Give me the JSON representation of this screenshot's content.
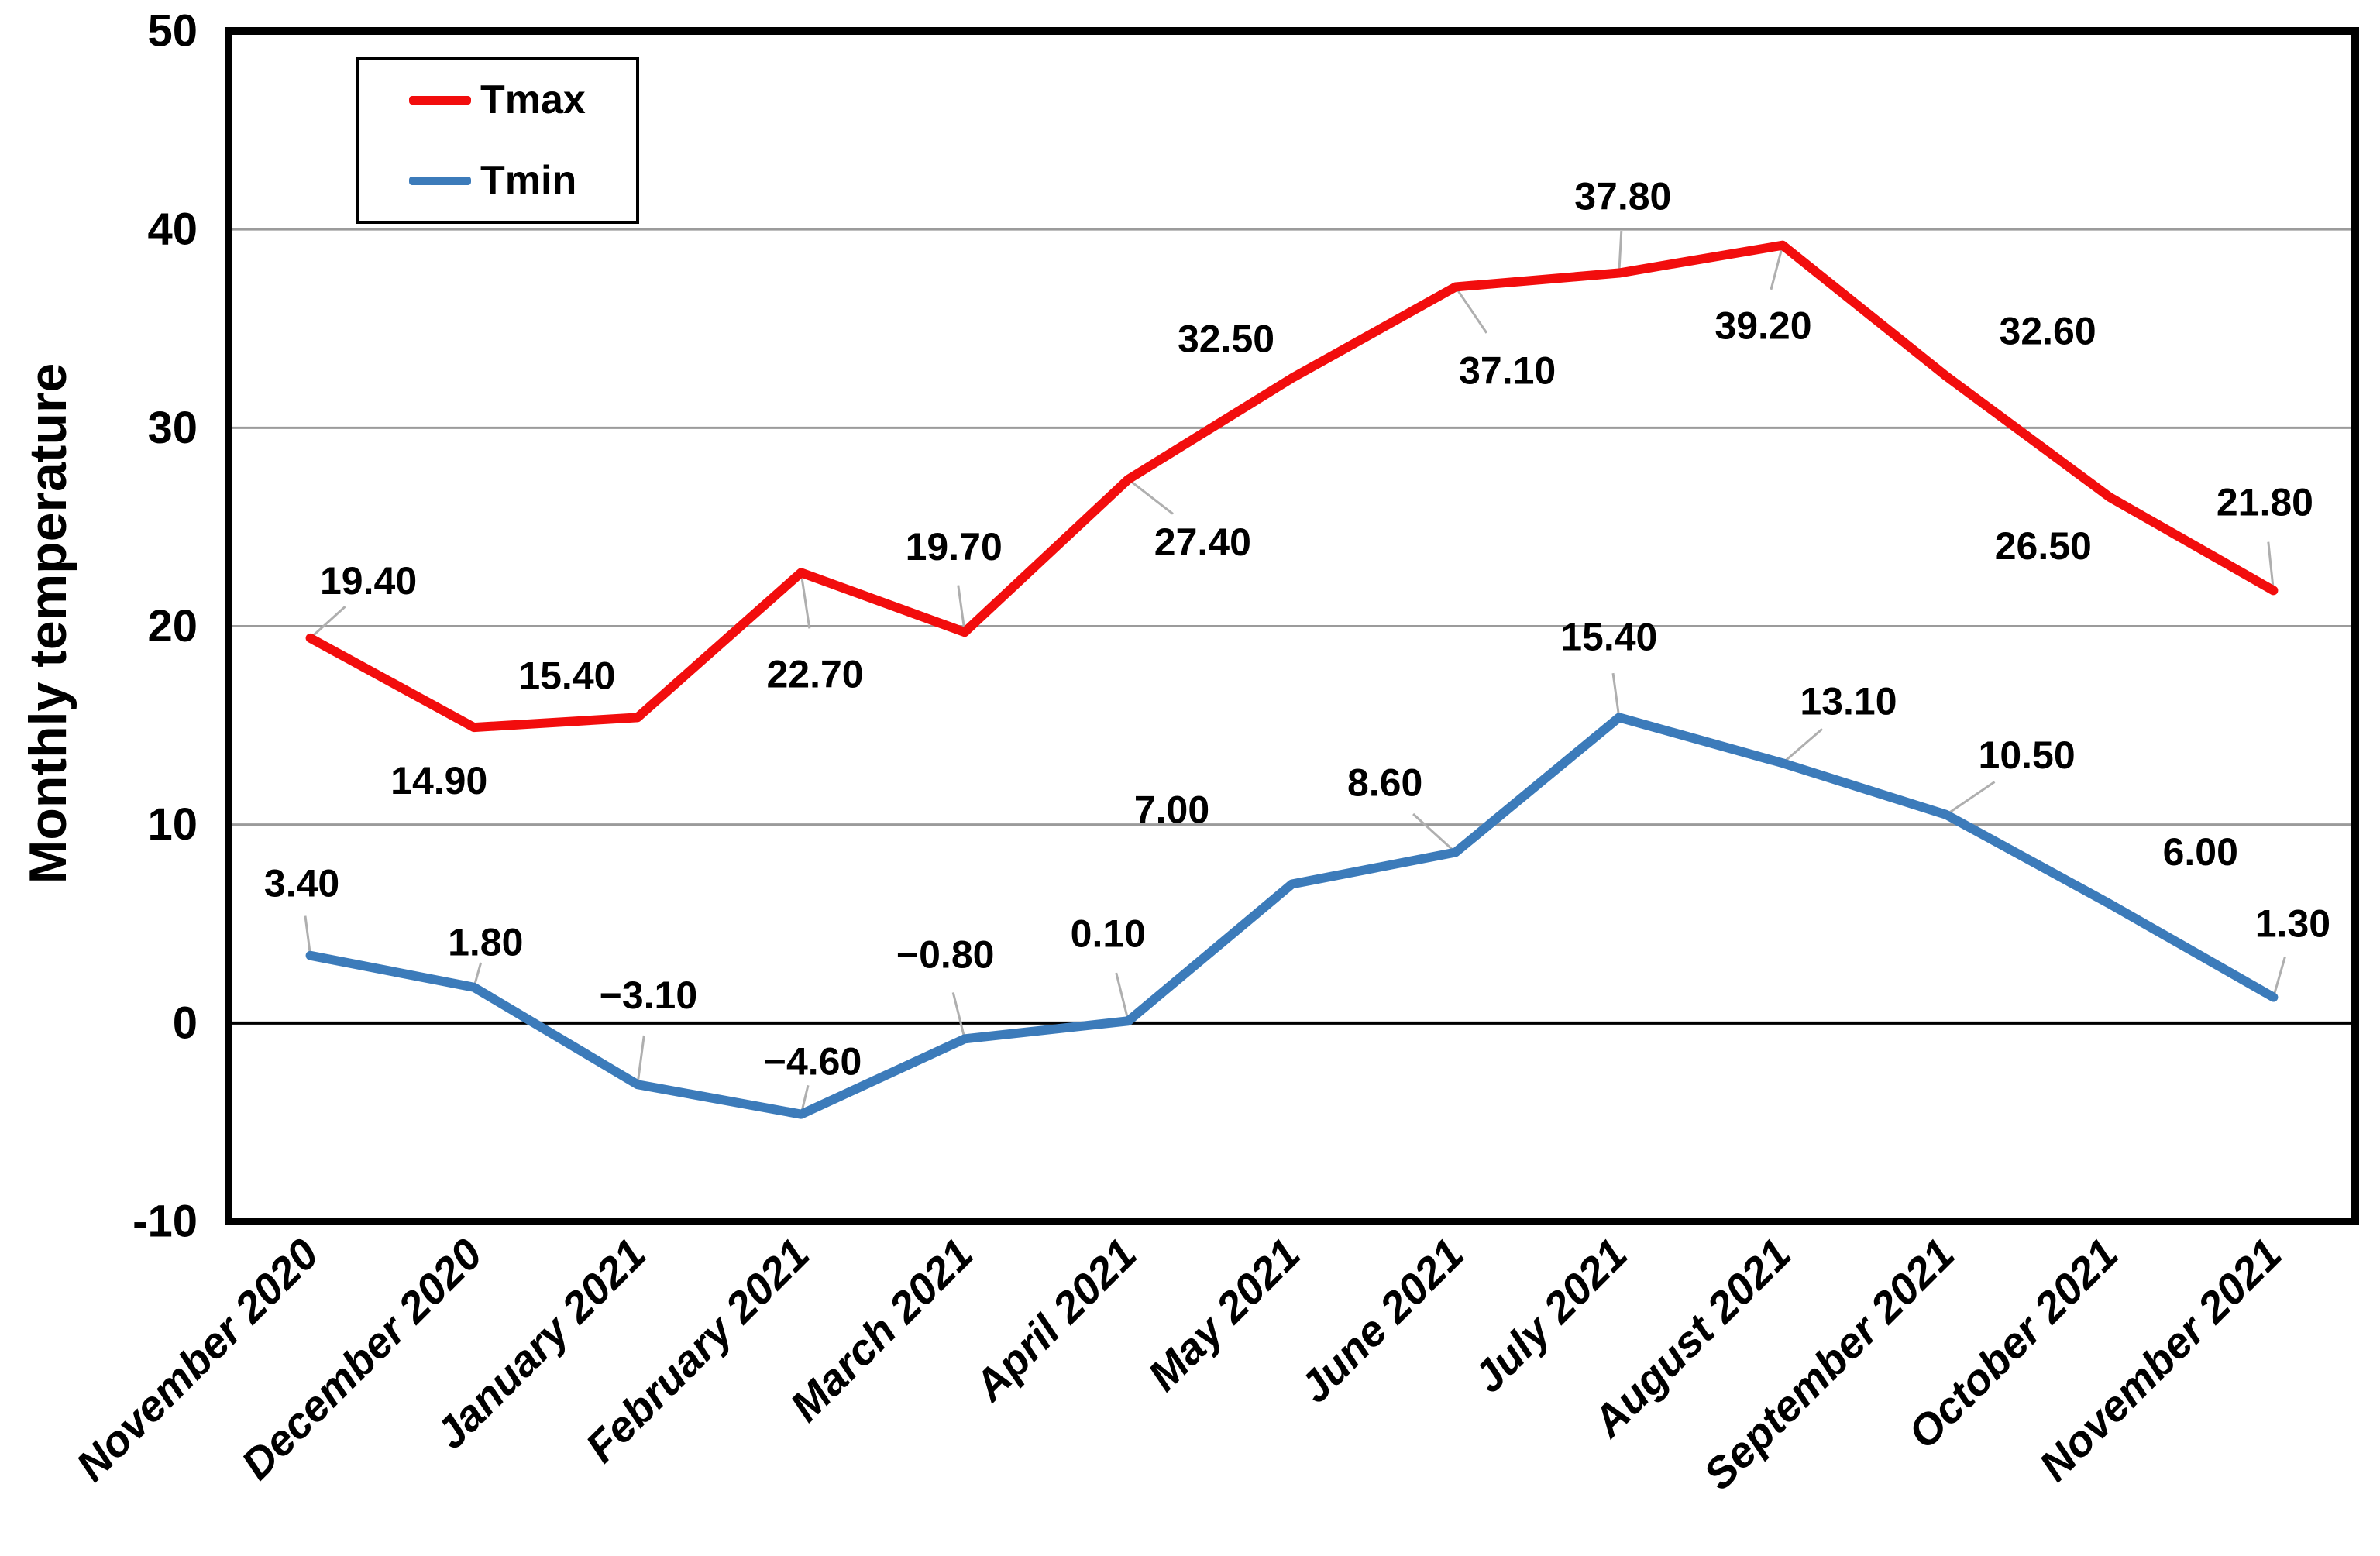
{
  "colors": {
    "background": "#FFFFFF",
    "frame": "#000000",
    "gridline": "#9B9B9B",
    "zero_line": "#000000",
    "leader": "#AFAFAF",
    "text": "#000000"
  },
  "chart_data": {
    "type": "line",
    "title": "",
    "xlabel": "",
    "ylabel": "Monthly temperature",
    "ylim": [
      -10,
      50
    ],
    "grid": true,
    "legend_position": "top-left-inside",
    "yticks": [
      {
        "value": 50,
        "label": "50"
      },
      {
        "value": 40,
        "label": "40"
      },
      {
        "value": 30,
        "label": "30"
      },
      {
        "value": 20,
        "label": "20"
      },
      {
        "value": 10,
        "label": "10"
      },
      {
        "value": 0,
        "label": "0"
      },
      {
        "value": -10,
        "label": "-10"
      }
    ],
    "categories": [
      "November 2020",
      "December 2020",
      "January 2021",
      "February 2021",
      "March 2021",
      "April 2021",
      "May 2021",
      "June 2021",
      "July 2021",
      "August 2021",
      "September 2021",
      "October 2021",
      "November 2021"
    ],
    "series": [
      {
        "name": "Tmax",
        "color": "#F20D0D",
        "values": [
          19.4,
          14.9,
          15.4,
          22.7,
          19.7,
          27.4,
          32.5,
          37.1,
          37.8,
          39.2,
          32.6,
          26.5,
          21.8
        ],
        "labels": [
          "19.40",
          "14.90",
          "15.40",
          "22.70",
          "19.70",
          "27.40",
          "32.50",
          "37.10",
          "37.80",
          "39.20",
          "32.60",
          "26.50",
          "21.80"
        ],
        "label_offsets": [
          [
            75,
            -74,
            1
          ],
          [
            -45,
            69,
            0
          ],
          [
            -91,
            -54,
            0
          ],
          [
            18,
            131,
            1
          ],
          [
            -14,
            -110,
            1
          ],
          [
            96,
            81,
            1
          ],
          [
            -85,
            -51,
            0
          ],
          [
            67,
            108,
            1
          ],
          [
            5,
            -99,
            1
          ],
          [
            -25,
            104,
            1
          ],
          [
            131,
            -58,
            0
          ],
          [
            -86,
            63,
            0
          ],
          [
            -11,
            -114,
            1
          ]
        ]
      },
      {
        "name": "Tmin",
        "color": "#3C7BBA",
        "values": [
          3.4,
          1.8,
          -3.1,
          -4.6,
          -0.8,
          0.1,
          7.0,
          8.6,
          15.4,
          13.1,
          10.5,
          6.0,
          1.3
        ],
        "labels": [
          "3.40",
          "1.80",
          "−3.10",
          "−4.60",
          "−0.80",
          "0.10",
          "7.00",
          "8.60",
          "15.40",
          "13.10",
          "10.50",
          "6.00",
          "1.30"
        ],
        "label_offsets": [
          [
            -11,
            -93,
            1
          ],
          [
            15,
            -58,
            1
          ],
          [
            14,
            -115,
            1
          ],
          [
            15,
            -68,
            1
          ],
          [
            -25,
            -109,
            1
          ],
          [
            -26,
            -113,
            1
          ],
          [
            -155,
            -96,
            0
          ],
          [
            -91,
            -90,
            1
          ],
          [
            -13,
            -104,
            1
          ],
          [
            85,
            -80,
            1
          ],
          [
            104,
            -77,
            1
          ],
          [
            117,
            -67,
            0
          ],
          [
            25,
            -95,
            1
          ]
        ]
      }
    ]
  }
}
